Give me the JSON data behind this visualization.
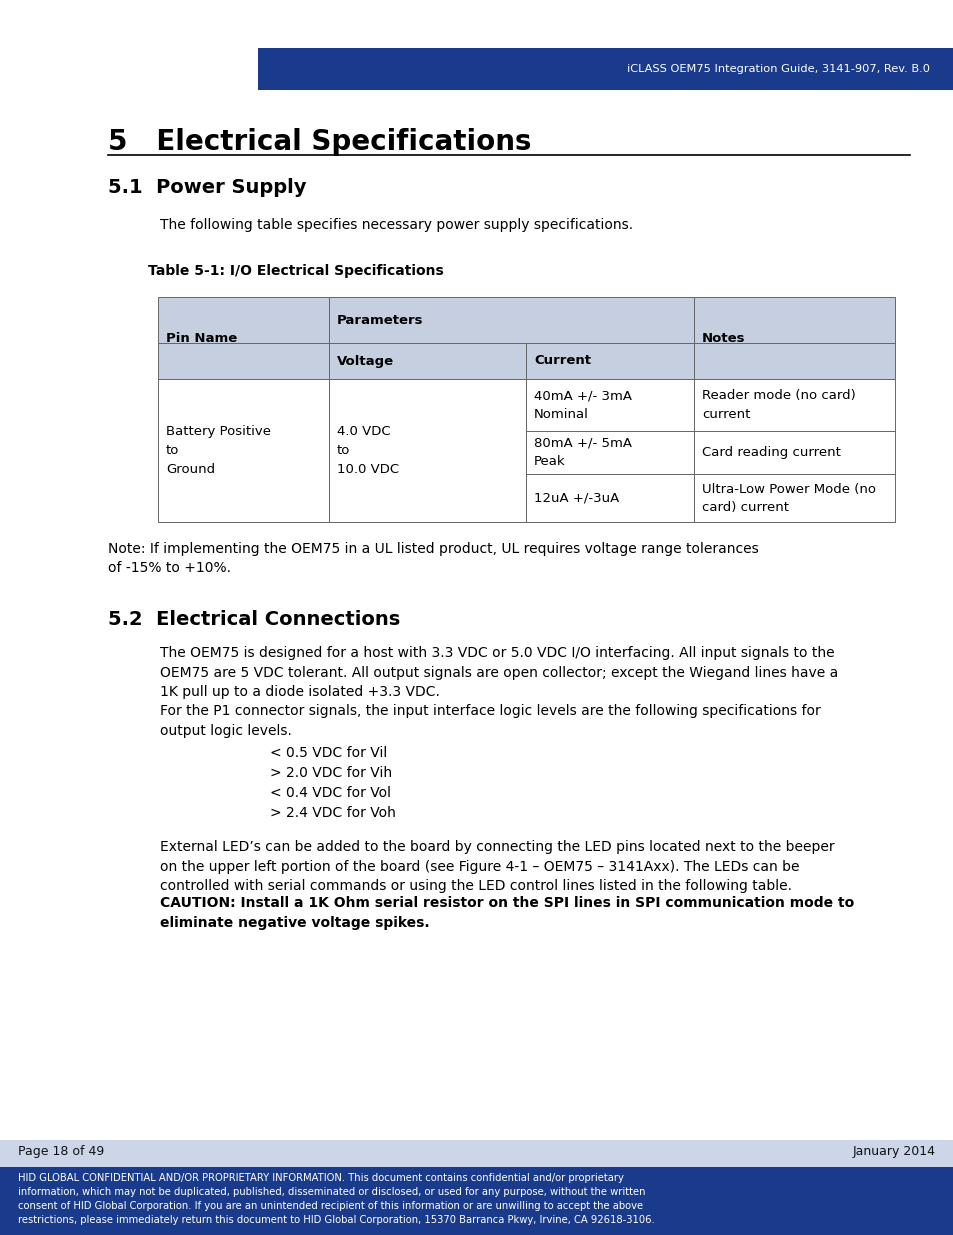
{
  "header_bg": "#1a3a8c",
  "header_text": "iCLASS OEM75 Integration Guide, 3141-907, Rev. B.0",
  "header_text_color": "#ffffff",
  "footer_bg": "#1a3a8c",
  "footer_text_color": "#ffffff",
  "footer_left": "Page 18 of 49",
  "footer_right": "January 2014",
  "footer_confidential": "HID GLOBAL CONFIDENTIAL AND/OR PROPRIETARY INFORMATION. This document contains confidential and/or proprietary\ninformation, which may not be duplicated, published, disseminated or disclosed, or used for any purpose, without the written\nconsent of HID Global Corporation. If you are an unintended recipient of this information or are unwilling to accept the above\nrestrictions, please immediately return this document to HID Global Corporation, 15370 Barranca Pkwy, Irvine, CA 92618-3106.",
  "footer_page_bg": "#ccd6e8",
  "section_title": "5   Electrical Specifications",
  "sub_title_51": "5.1  Power Supply",
  "body_text_51": "The following table specifies necessary power supply specifications.",
  "table_caption": "Table 5-1: I/O Electrical Specifications",
  "table_header_bg": "#c5cfe0",
  "table_body_bg": "#ffffff",
  "table_border": "#666666",
  "sub_title_52": "5.2  Electrical Connections",
  "body_text_52a": "The OEM75 is designed for a host with 3.3 VDC or 5.0 VDC I/O interfacing. All input signals to the\nOEM75 are 5 VDC tolerant. All output signals are open collector; except the Wiegand lines have a\n1K pull up to a diode isolated +3.3 VDC.",
  "body_text_52b": "For the P1 connector signals, the input interface logic levels are the following specifications for\noutput logic levels.",
  "bullet_items": [
    "< 0.5 VDC for Vil",
    "> 2.0 VDC for Vih",
    "< 0.4 VDC for Vol",
    "> 2.4 VDC for Voh"
  ],
  "body_text_52c": "External LED’s can be added to the board by connecting the LED pins located next to the beeper\non the upper left portion of the board (see Figure 4-1 – OEM75 – 3141Axx). The LEDs can be\ncontrolled with serial commands or using the LED control lines listed in the following table.",
  "caution_text": "CAUTION: Install a 1K Ohm serial resistor on the SPI lines in SPI communication mode to\neliminate negative voltage spikes.",
  "note_text": "Note: If implementing the OEM75 in a UL listed product, UL requires voltage range tolerances\nof -15% to +10%.",
  "bg_color": "#ffffff",
  "body_fontsize": 10.0,
  "section_fontsize": 20,
  "subsection_fontsize": 14
}
